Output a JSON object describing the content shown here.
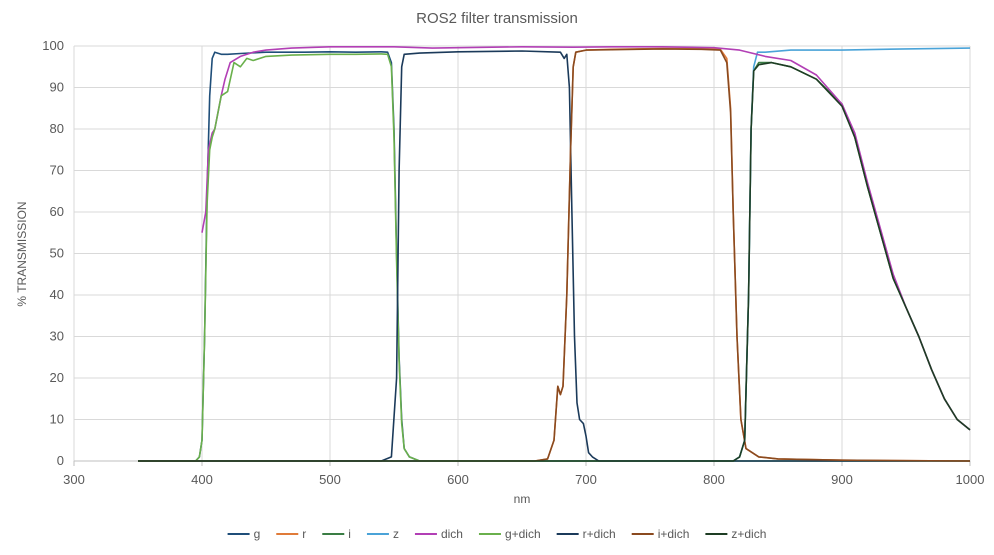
{
  "chart_data": {
    "type": "line",
    "title": "ROS2 filter transmission",
    "xlabel": "nm",
    "ylabel": "% TRANSMISSION",
    "xlim": [
      300,
      1000
    ],
    "ylim": [
      0,
      100
    ],
    "x_ticks": [
      300,
      400,
      500,
      600,
      700,
      800,
      900,
      1000
    ],
    "y_ticks": [
      0,
      10,
      20,
      30,
      40,
      50,
      60,
      70,
      80,
      90,
      100
    ],
    "grid": true,
    "legend_position": "bottom",
    "series": [
      {
        "name": "g",
        "color": "#1f4e79",
        "points": [
          [
            350,
            0
          ],
          [
            395,
            0
          ],
          [
            398,
            1
          ],
          [
            400,
            5
          ],
          [
            402,
            30
          ],
          [
            404,
            65
          ],
          [
            406,
            88
          ],
          [
            408,
            97
          ],
          [
            410,
            98.5
          ],
          [
            415,
            98
          ],
          [
            420,
            98
          ],
          [
            430,
            98.2
          ],
          [
            450,
            98.5
          ],
          [
            480,
            98.5
          ],
          [
            500,
            98.6
          ],
          [
            520,
            98.5
          ],
          [
            540,
            98.6
          ],
          [
            545,
            98.5
          ],
          [
            548,
            96
          ],
          [
            550,
            80
          ],
          [
            552,
            50
          ],
          [
            554,
            25
          ],
          [
            556,
            10
          ],
          [
            558,
            3
          ],
          [
            562,
            1
          ],
          [
            570,
            0
          ],
          [
            1000,
            0
          ]
        ]
      },
      {
        "name": "r",
        "color": "#e07b39",
        "points": [
          [
            350,
            0
          ],
          [
            660,
            0
          ],
          [
            670,
            0.5
          ],
          [
            675,
            5
          ],
          [
            678,
            18
          ],
          [
            680,
            16
          ],
          [
            682,
            18
          ],
          [
            685,
            40
          ],
          [
            688,
            75
          ],
          [
            690,
            95
          ],
          [
            692,
            98.5
          ],
          [
            700,
            99
          ],
          [
            720,
            99.2
          ],
          [
            760,
            99.4
          ],
          [
            790,
            99.4
          ],
          [
            805,
            99.2
          ],
          [
            810,
            97
          ],
          [
            813,
            85
          ],
          [
            815,
            60
          ],
          [
            818,
            30
          ],
          [
            821,
            10
          ],
          [
            825,
            3
          ],
          [
            835,
            1
          ],
          [
            850,
            0.5
          ],
          [
            900,
            0.2
          ],
          [
            1000,
            0
          ]
        ]
      },
      {
        "name": "i",
        "color": "#3a7d44",
        "points": [
          [
            350,
            0
          ],
          [
            815,
            0
          ],
          [
            820,
            1
          ],
          [
            824,
            5
          ],
          [
            827,
            40
          ],
          [
            829,
            80
          ],
          [
            831,
            94
          ],
          [
            835,
            96
          ],
          [
            845,
            96
          ],
          [
            860,
            95
          ],
          [
            880,
            92
          ],
          [
            900,
            86
          ],
          [
            910,
            78
          ],
          [
            920,
            66
          ],
          [
            930,
            55
          ],
          [
            940,
            44
          ],
          [
            950,
            37
          ],
          [
            960,
            30
          ],
          [
            970,
            22
          ],
          [
            980,
            15
          ],
          [
            990,
            10
          ],
          [
            1000,
            7.5
          ]
        ]
      },
      {
        "name": "z",
        "color": "#4aa3d8",
        "points": [
          [
            350,
            0
          ],
          [
            815,
            0
          ],
          [
            820,
            1
          ],
          [
            824,
            5
          ],
          [
            827,
            40
          ],
          [
            829,
            80
          ],
          [
            831,
            95
          ],
          [
            834,
            98.5
          ],
          [
            840,
            98.5
          ],
          [
            860,
            99
          ],
          [
            900,
            99
          ],
          [
            950,
            99.3
          ],
          [
            1000,
            99.5
          ]
        ]
      },
      {
        "name": "dich",
        "color": "#b23fb5",
        "points": [
          [
            400,
            55
          ],
          [
            403,
            60
          ],
          [
            405,
            75
          ],
          [
            408,
            79
          ],
          [
            410,
            80
          ],
          [
            415,
            88
          ],
          [
            418,
            92
          ],
          [
            422,
            96
          ],
          [
            430,
            97.5
          ],
          [
            440,
            98.5
          ],
          [
            450,
            99
          ],
          [
            470,
            99.5
          ],
          [
            500,
            99.8
          ],
          [
            550,
            99.8
          ],
          [
            580,
            99.5
          ],
          [
            600,
            99.6
          ],
          [
            650,
            99.8
          ],
          [
            690,
            99.7
          ],
          [
            720,
            99.8
          ],
          [
            760,
            99.8
          ],
          [
            800,
            99.6
          ],
          [
            820,
            99
          ],
          [
            840,
            97.5
          ],
          [
            860,
            96.5
          ],
          [
            880,
            93
          ],
          [
            900,
            86
          ],
          [
            910,
            79
          ],
          [
            920,
            67
          ],
          [
            930,
            56
          ],
          [
            940,
            45
          ],
          [
            950,
            37
          ],
          [
            960,
            30
          ],
          [
            970,
            22
          ],
          [
            980,
            15
          ],
          [
            990,
            10
          ],
          [
            1000,
            7.5
          ]
        ]
      },
      {
        "name": "g+dich",
        "color": "#6ab04c",
        "points": [
          [
            350,
            0
          ],
          [
            395,
            0
          ],
          [
            398,
            1
          ],
          [
            400,
            5
          ],
          [
            402,
            30
          ],
          [
            404,
            62
          ],
          [
            406,
            75
          ],
          [
            408,
            78
          ],
          [
            410,
            80
          ],
          [
            415,
            88
          ],
          [
            420,
            89
          ],
          [
            425,
            96
          ],
          [
            430,
            95
          ],
          [
            435,
            97
          ],
          [
            440,
            96.5
          ],
          [
            450,
            97.5
          ],
          [
            470,
            97.8
          ],
          [
            500,
            98
          ],
          [
            520,
            98
          ],
          [
            540,
            98.1
          ],
          [
            545,
            98
          ],
          [
            548,
            95
          ],
          [
            550,
            78
          ],
          [
            552,
            48
          ],
          [
            554,
            24
          ],
          [
            556,
            9
          ],
          [
            558,
            3
          ],
          [
            562,
            1
          ],
          [
            570,
            0
          ],
          [
            1000,
            0
          ]
        ]
      },
      {
        "name": "r+dich",
        "color": "#1b3a5a",
        "points": [
          [
            350,
            0
          ],
          [
            540,
            0
          ],
          [
            548,
            1
          ],
          [
            552,
            20
          ],
          [
            554,
            70
          ],
          [
            556,
            95
          ],
          [
            558,
            98
          ],
          [
            570,
            98.3
          ],
          [
            600,
            98.6
          ],
          [
            650,
            98.8
          ],
          [
            680,
            98.5
          ],
          [
            683,
            97
          ],
          [
            685,
            98
          ],
          [
            687,
            90
          ],
          [
            689,
            60
          ],
          [
            691,
            30
          ],
          [
            693,
            14
          ],
          [
            695,
            10
          ],
          [
            698,
            9
          ],
          [
            700,
            6
          ],
          [
            702,
            2
          ],
          [
            705,
            1
          ],
          [
            710,
            0
          ],
          [
            1000,
            0
          ]
        ]
      },
      {
        "name": "i+dich",
        "color": "#8a4a1f",
        "points": [
          [
            350,
            0
          ],
          [
            660,
            0
          ],
          [
            670,
            0.5
          ],
          [
            675,
            5
          ],
          [
            678,
            18
          ],
          [
            680,
            16
          ],
          [
            682,
            18
          ],
          [
            685,
            40
          ],
          [
            688,
            75
          ],
          [
            690,
            95
          ],
          [
            692,
            98.5
          ],
          [
            700,
            99
          ],
          [
            720,
            99.1
          ],
          [
            760,
            99.3
          ],
          [
            790,
            99.2
          ],
          [
            805,
            99
          ],
          [
            810,
            96
          ],
          [
            813,
            84
          ],
          [
            815,
            60
          ],
          [
            818,
            30
          ],
          [
            821,
            10
          ],
          [
            825,
            3
          ],
          [
            835,
            1
          ],
          [
            850,
            0.5
          ],
          [
            900,
            0.2
          ],
          [
            1000,
            0
          ]
        ]
      },
      {
        "name": "z+dich",
        "color": "#1e3d24",
        "points": [
          [
            350,
            0
          ],
          [
            815,
            0
          ],
          [
            820,
            1
          ],
          [
            824,
            5
          ],
          [
            827,
            40
          ],
          [
            829,
            80
          ],
          [
            831,
            94
          ],
          [
            835,
            95.5
          ],
          [
            845,
            96
          ],
          [
            860,
            95
          ],
          [
            880,
            92
          ],
          [
            900,
            85.5
          ],
          [
            910,
            78
          ],
          [
            920,
            66
          ],
          [
            930,
            55
          ],
          [
            940,
            44
          ],
          [
            950,
            37
          ],
          [
            960,
            30
          ],
          [
            970,
            22
          ],
          [
            980,
            15
          ],
          [
            990,
            10
          ],
          [
            1000,
            7.5
          ]
        ]
      }
    ]
  },
  "colors": {
    "grid": "#d9d9d9",
    "axis": "#bfbfbf",
    "text": "#595959"
  }
}
